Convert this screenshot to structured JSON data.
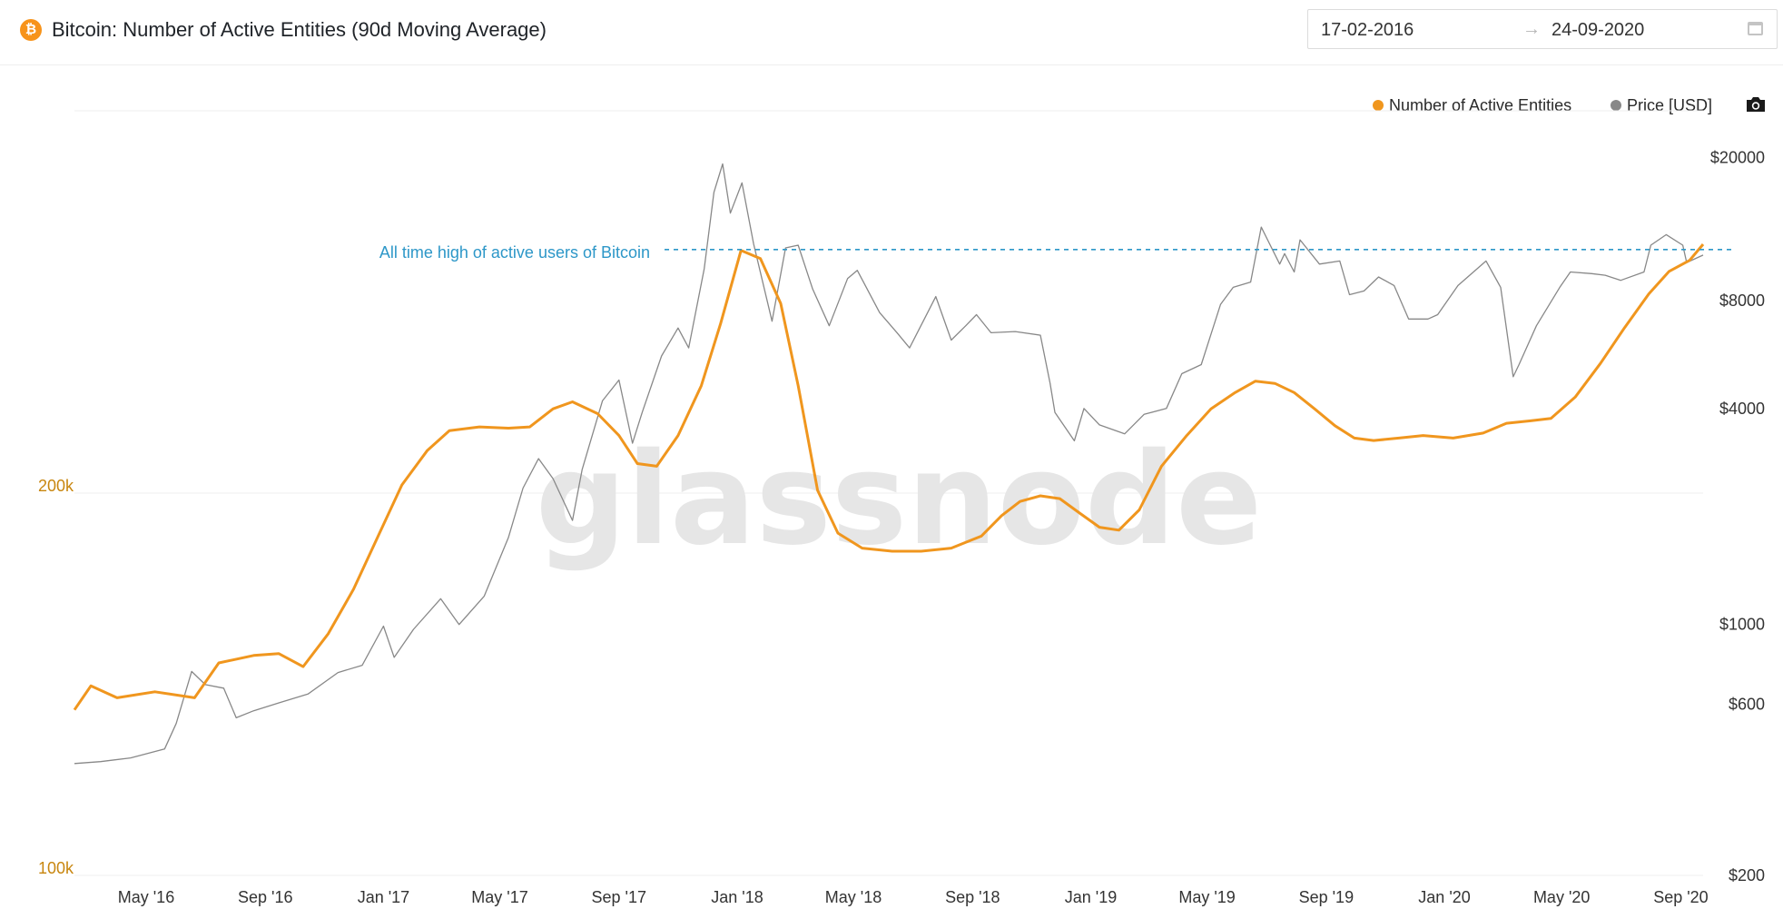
{
  "header": {
    "title": "Bitcoin: Number of Active Entities (90d Moving Average)",
    "logo_glyph": "₿",
    "logo_icon": "bitcoin-logo-icon",
    "date_start": "17-02-2016",
    "date_arrow": "→",
    "date_end": "24-09-2020",
    "calendar_icon": "calendar-icon"
  },
  "toolbar": {
    "camera_icon": "camera-icon"
  },
  "colors": {
    "entities": "#f0961e",
    "price": "#888888",
    "annotation": "#2d97c8",
    "left_axis": "#c8860f",
    "grid": "#efefef",
    "watermark": "#e6e6e6"
  },
  "watermark": "glassnode",
  "chart_data": {
    "type": "line",
    "x_range": [
      "2016-02-17",
      "2020-09-24"
    ],
    "x_ticks": [
      {
        "date": "2016-05-01",
        "label": "May '16"
      },
      {
        "date": "2016-09-01",
        "label": "Sep '16"
      },
      {
        "date": "2017-01-01",
        "label": "Jan '17"
      },
      {
        "date": "2017-05-01",
        "label": "May '17"
      },
      {
        "date": "2017-09-01",
        "label": "Sep '17"
      },
      {
        "date": "2018-01-01",
        "label": "Jan '18"
      },
      {
        "date": "2018-05-01",
        "label": "May '18"
      },
      {
        "date": "2018-09-01",
        "label": "Sep '18"
      },
      {
        "date": "2019-01-01",
        "label": "Jan '19"
      },
      {
        "date": "2019-05-01",
        "label": "May '19"
      },
      {
        "date": "2019-09-01",
        "label": "Sep '19"
      },
      {
        "date": "2020-01-01",
        "label": "Jan '20"
      },
      {
        "date": "2020-05-01",
        "label": "May '20"
      },
      {
        "date": "2020-09-01",
        "label": "Sep '20"
      }
    ],
    "y_left": {
      "scale": "log",
      "range": [
        100000,
        400000
      ],
      "ticks": [
        {
          "value": 100000,
          "label": "100k"
        },
        {
          "value": 200000,
          "label": "200k"
        }
      ]
    },
    "y_right": {
      "scale": "log",
      "range": [
        200,
        27000
      ],
      "ticks": [
        {
          "value": 200,
          "label": "$200"
        },
        {
          "value": 600,
          "label": "$600"
        },
        {
          "value": 1000,
          "label": "$1000"
        },
        {
          "value": 4000,
          "label": "$4000"
        },
        {
          "value": 8000,
          "label": "$8000"
        },
        {
          "value": 20000,
          "label": "$20000"
        }
      ]
    },
    "legend": {
      "position": "top-right"
    },
    "grid": true,
    "annotation": {
      "text": "All time high of active users of Bitcoin",
      "value": 311000
    },
    "series": [
      {
        "name": "Number of Active Entities",
        "axis": "left",
        "points": [
          [
            "2016-02-17",
            135000
          ],
          [
            "2016-03-05",
            141000
          ],
          [
            "2016-04-01",
            138000
          ],
          [
            "2016-05-10",
            139500
          ],
          [
            "2016-06-20",
            138000
          ],
          [
            "2016-07-15",
            147000
          ],
          [
            "2016-08-20",
            149000
          ],
          [
            "2016-09-15",
            149500
          ],
          [
            "2016-10-10",
            146000
          ],
          [
            "2016-11-05",
            155000
          ],
          [
            "2016-12-01",
            168000
          ],
          [
            "2016-12-25",
            184000
          ],
          [
            "2017-01-20",
            203000
          ],
          [
            "2017-02-15",
            216000
          ],
          [
            "2017-03-10",
            224000
          ],
          [
            "2017-04-10",
            225500
          ],
          [
            "2017-05-10",
            225000
          ],
          [
            "2017-06-01",
            225500
          ],
          [
            "2017-06-25",
            233000
          ],
          [
            "2017-07-15",
            236000
          ],
          [
            "2017-08-10",
            231000
          ],
          [
            "2017-09-01",
            222000
          ],
          [
            "2017-09-20",
            211000
          ],
          [
            "2017-10-10",
            210000
          ],
          [
            "2017-11-01",
            222000
          ],
          [
            "2017-11-25",
            243000
          ],
          [
            "2017-12-15",
            272000
          ],
          [
            "2018-01-05",
            310500
          ],
          [
            "2018-01-25",
            306000
          ],
          [
            "2018-02-15",
            282000
          ],
          [
            "2018-03-05",
            243000
          ],
          [
            "2018-03-25",
            201000
          ],
          [
            "2018-04-15",
            186000
          ],
          [
            "2018-05-10",
            181000
          ],
          [
            "2018-06-10",
            180000
          ],
          [
            "2018-07-10",
            180000
          ],
          [
            "2018-08-10",
            181000
          ],
          [
            "2018-09-10",
            185000
          ],
          [
            "2018-10-01",
            192000
          ],
          [
            "2018-10-20",
            197000
          ],
          [
            "2018-11-10",
            199000
          ],
          [
            "2018-11-30",
            198000
          ],
          [
            "2018-12-20",
            193000
          ],
          [
            "2019-01-10",
            188000
          ],
          [
            "2019-01-30",
            187000
          ],
          [
            "2019-02-20",
            194000
          ],
          [
            "2019-03-15",
            210000
          ],
          [
            "2019-04-10",
            222000
          ],
          [
            "2019-05-05",
            233000
          ],
          [
            "2019-05-30",
            240000
          ],
          [
            "2019-06-20",
            245000
          ],
          [
            "2019-07-10",
            244000
          ],
          [
            "2019-07-30",
            240000
          ],
          [
            "2019-08-20",
            233000
          ],
          [
            "2019-09-10",
            226000
          ],
          [
            "2019-09-30",
            221000
          ],
          [
            "2019-10-20",
            220000
          ],
          [
            "2019-11-15",
            221000
          ],
          [
            "2019-12-10",
            222000
          ],
          [
            "2020-01-10",
            221000
          ],
          [
            "2020-02-10",
            223000
          ],
          [
            "2020-03-05",
            227000
          ],
          [
            "2020-03-30",
            228000
          ],
          [
            "2020-04-20",
            229000
          ],
          [
            "2020-05-15",
            238000
          ],
          [
            "2020-06-10",
            253000
          ],
          [
            "2020-07-05",
            270000
          ],
          [
            "2020-07-30",
            287000
          ],
          [
            "2020-08-20",
            299000
          ],
          [
            "2020-09-10",
            305000
          ],
          [
            "2020-09-24",
            314000
          ]
        ]
      },
      {
        "name": "Price [USD]",
        "axis": "right",
        "points": [
          [
            "2016-02-17",
            410
          ],
          [
            "2016-03-15",
            415
          ],
          [
            "2016-04-15",
            425
          ],
          [
            "2016-05-20",
            450
          ],
          [
            "2016-06-01",
            530
          ],
          [
            "2016-06-17",
            740
          ],
          [
            "2016-07-01",
            680
          ],
          [
            "2016-07-20",
            665
          ],
          [
            "2016-08-02",
            550
          ],
          [
            "2016-08-20",
            575
          ],
          [
            "2016-09-15",
            605
          ],
          [
            "2016-10-15",
            640
          ],
          [
            "2016-11-15",
            735
          ],
          [
            "2016-12-10",
            770
          ],
          [
            "2017-01-01",
            990
          ],
          [
            "2017-01-12",
            810
          ],
          [
            "2017-02-01",
            970
          ],
          [
            "2017-03-01",
            1180
          ],
          [
            "2017-03-20",
            1000
          ],
          [
            "2017-04-15",
            1200
          ],
          [
            "2017-05-10",
            1750
          ],
          [
            "2017-05-25",
            2400
          ],
          [
            "2017-06-10",
            2900
          ],
          [
            "2017-06-25",
            2550
          ],
          [
            "2017-07-15",
            1950
          ],
          [
            "2017-07-25",
            2700
          ],
          [
            "2017-08-15",
            4200
          ],
          [
            "2017-09-01",
            4800
          ],
          [
            "2017-09-15",
            3200
          ],
          [
            "2017-09-25",
            3900
          ],
          [
            "2017-10-15",
            5600
          ],
          [
            "2017-11-01",
            6700
          ],
          [
            "2017-11-12",
            5900
          ],
          [
            "2017-11-28",
            9800
          ],
          [
            "2017-12-08",
            16000
          ],
          [
            "2017-12-17",
            19200
          ],
          [
            "2017-12-25",
            14000
          ],
          [
            "2018-01-06",
            17000
          ],
          [
            "2018-01-18",
            11500
          ],
          [
            "2018-02-06",
            7000
          ],
          [
            "2018-02-20",
            11200
          ],
          [
            "2018-03-05",
            11400
          ],
          [
            "2018-03-20",
            8600
          ],
          [
            "2018-04-06",
            6800
          ],
          [
            "2018-04-25",
            9200
          ],
          [
            "2018-05-05",
            9700
          ],
          [
            "2018-05-28",
            7400
          ],
          [
            "2018-06-15",
            6500
          ],
          [
            "2018-06-28",
            5900
          ],
          [
            "2018-07-25",
            8200
          ],
          [
            "2018-08-10",
            6200
          ],
          [
            "2018-08-25",
            6800
          ],
          [
            "2018-09-05",
            7300
          ],
          [
            "2018-09-20",
            6500
          ],
          [
            "2018-10-15",
            6550
          ],
          [
            "2018-11-10",
            6400
          ],
          [
            "2018-11-20",
            4700
          ],
          [
            "2018-11-25",
            3900
          ],
          [
            "2018-12-15",
            3250
          ],
          [
            "2018-12-25",
            4000
          ],
          [
            "2019-01-10",
            3600
          ],
          [
            "2019-02-05",
            3400
          ],
          [
            "2019-02-25",
            3850
          ],
          [
            "2019-03-20",
            4000
          ],
          [
            "2019-04-05",
            5000
          ],
          [
            "2019-04-25",
            5300
          ],
          [
            "2019-05-15",
            7800
          ],
          [
            "2019-05-28",
            8700
          ],
          [
            "2019-06-15",
            9000
          ],
          [
            "2019-06-26",
            12800
          ],
          [
            "2019-07-15",
            10100
          ],
          [
            "2019-07-20",
            10800
          ],
          [
            "2019-07-30",
            9600
          ],
          [
            "2019-08-05",
            11800
          ],
          [
            "2019-08-25",
            10100
          ],
          [
            "2019-09-15",
            10300
          ],
          [
            "2019-09-25",
            8300
          ],
          [
            "2019-10-10",
            8500
          ],
          [
            "2019-10-25",
            9300
          ],
          [
            "2019-11-10",
            8800
          ],
          [
            "2019-11-25",
            7100
          ],
          [
            "2019-12-15",
            7100
          ],
          [
            "2019-12-25",
            7300
          ],
          [
            "2020-01-15",
            8800
          ],
          [
            "2020-02-13",
            10300
          ],
          [
            "2020-02-28",
            8700
          ],
          [
            "2020-03-12",
            4900
          ],
          [
            "2020-03-18",
            5300
          ],
          [
            "2020-04-05",
            6800
          ],
          [
            "2020-04-29",
            8700
          ],
          [
            "2020-05-10",
            9600
          ],
          [
            "2020-06-01",
            9500
          ],
          [
            "2020-06-15",
            9400
          ],
          [
            "2020-07-01",
            9100
          ],
          [
            "2020-07-25",
            9600
          ],
          [
            "2020-08-01",
            11400
          ],
          [
            "2020-08-17",
            12200
          ],
          [
            "2020-09-03",
            11400
          ],
          [
            "2020-09-07",
            10200
          ],
          [
            "2020-09-24",
            10700
          ]
        ]
      }
    ]
  }
}
